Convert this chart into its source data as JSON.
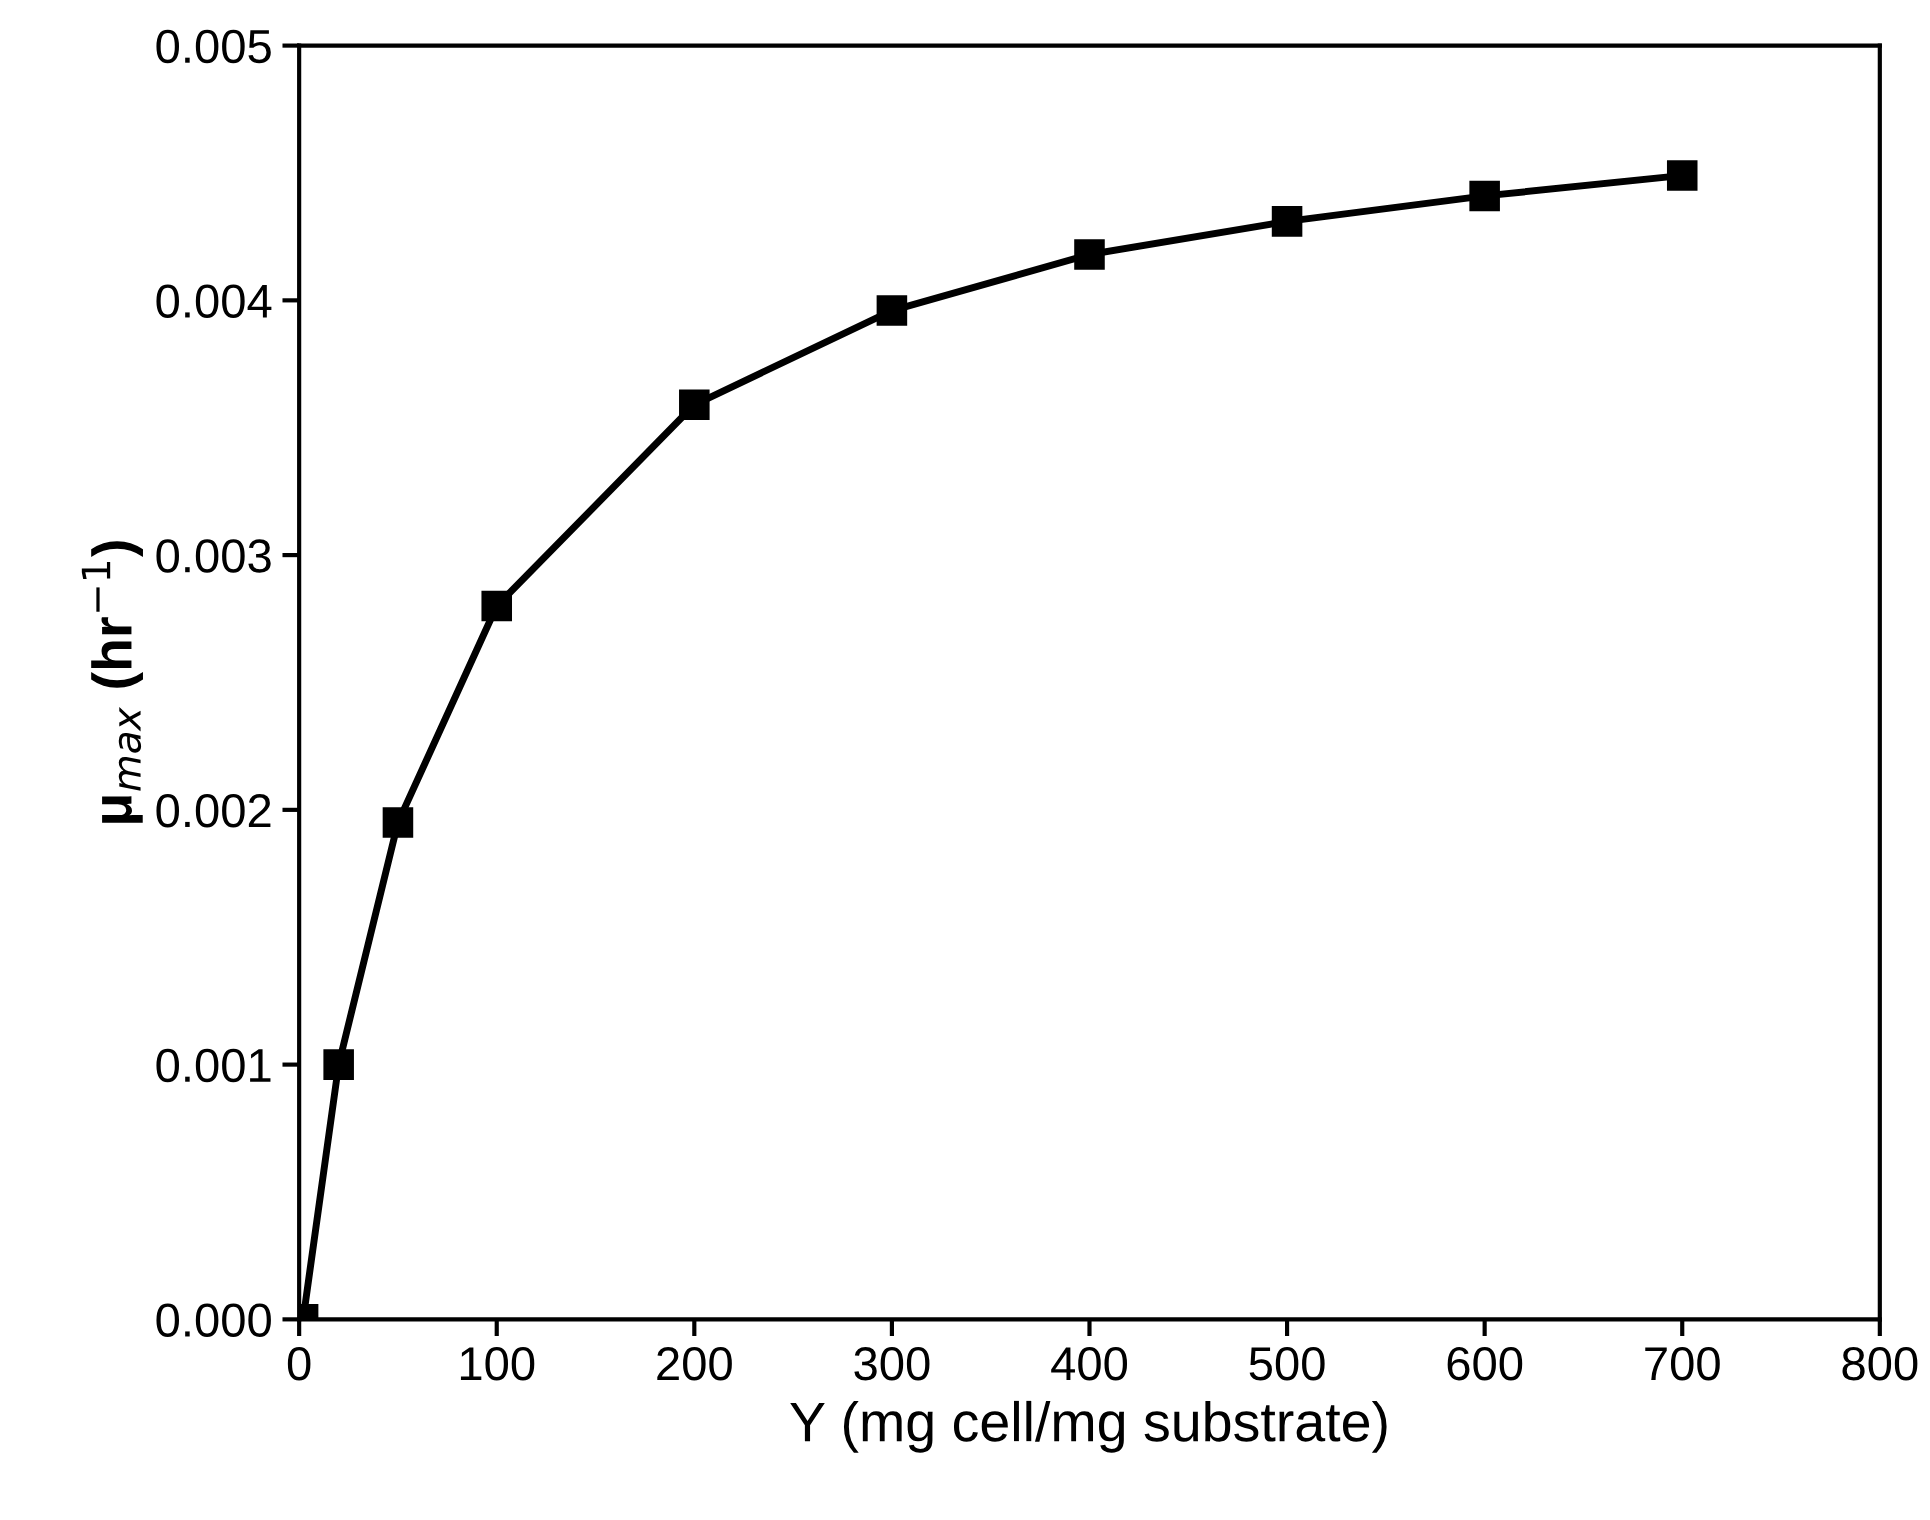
{
  "chart_data": {
    "type": "line",
    "xlabel": "Y (mg cell/mg substrate)",
    "ylabel": "μ$_{max}$ (hr$^{−1}$)",
    "x": [
      2,
      20,
      50,
      100,
      200,
      300,
      400,
      500,
      600,
      700
    ],
    "series": [
      {
        "color": "#000000",
        "values": [
          0.0,
          0.001,
          0.00195,
          0.0028,
          0.00359,
          0.00396,
          0.00418,
          0.00431,
          0.00441,
          0.00449
        ]
      }
    ],
    "marker": "square",
    "line_style": "solid",
    "grid": false,
    "xlim": [
      0,
      800
    ],
    "xticks": [
      0,
      100,
      200,
      300,
      400,
      500,
      600,
      700,
      800
    ],
    "ylim": [
      0,
      0.005
    ],
    "yticks": [
      {
        "value": 0,
        "label": "0.000"
      },
      {
        "value": 0.001,
        "label": "0.001"
      },
      {
        "value": 0.002,
        "label": "0.002"
      },
      {
        "value": 0.003,
        "label": "0.003"
      },
      {
        "value": 0.004,
        "label": "0.004"
      },
      {
        "value": 0.005,
        "label": "0.005"
      }
    ]
  }
}
